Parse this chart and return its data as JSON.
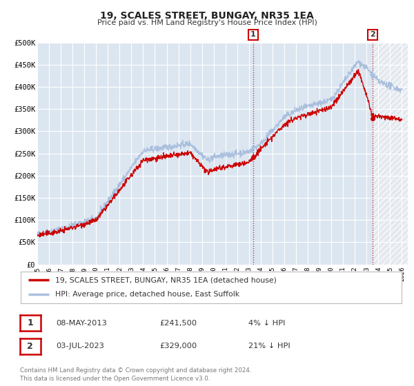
{
  "title": "19, SCALES STREET, BUNGAY, NR35 1EA",
  "subtitle": "Price paid vs. HM Land Registry's House Price Index (HPI)",
  "ylim": [
    0,
    500000
  ],
  "xlim_start": 1995.0,
  "xlim_end": 2026.5,
  "yticks": [
    0,
    50000,
    100000,
    150000,
    200000,
    250000,
    300000,
    350000,
    400000,
    450000,
    500000
  ],
  "ytick_labels": [
    "£0",
    "£50K",
    "£100K",
    "£150K",
    "£200K",
    "£250K",
    "£300K",
    "£350K",
    "£400K",
    "£450K",
    "£500K"
  ],
  "xticks": [
    1995,
    1996,
    1997,
    1998,
    1999,
    2000,
    2001,
    2002,
    2003,
    2004,
    2005,
    2006,
    2007,
    2008,
    2009,
    2010,
    2011,
    2012,
    2013,
    2014,
    2015,
    2016,
    2017,
    2018,
    2019,
    2020,
    2021,
    2022,
    2023,
    2024,
    2025,
    2026
  ],
  "background_color": "#ffffff",
  "plot_bg_color": "#dce6f1",
  "grid_color": "#ffffff",
  "hpi_line_color": "#aabfdd",
  "property_line_color": "#cc0000",
  "hatch_color": "#cccccc",
  "sale1_x": 2013.36,
  "sale1_y": 241500,
  "sale2_x": 2023.5,
  "sale2_y": 329000,
  "legend_property": "19, SCALES STREET, BUNGAY, NR35 1EA (detached house)",
  "legend_hpi": "HPI: Average price, detached house, East Suffolk",
  "sale1_date": "08-MAY-2013",
  "sale1_price": "£241,500",
  "sale1_hpi": "4% ↓ HPI",
  "sale2_date": "03-JUL-2023",
  "sale2_price": "£329,000",
  "sale2_hpi": "21% ↓ HPI",
  "footer1": "Contains HM Land Registry data © Crown copyright and database right 2024.",
  "footer2": "This data is licensed under the Open Government Licence v3.0."
}
